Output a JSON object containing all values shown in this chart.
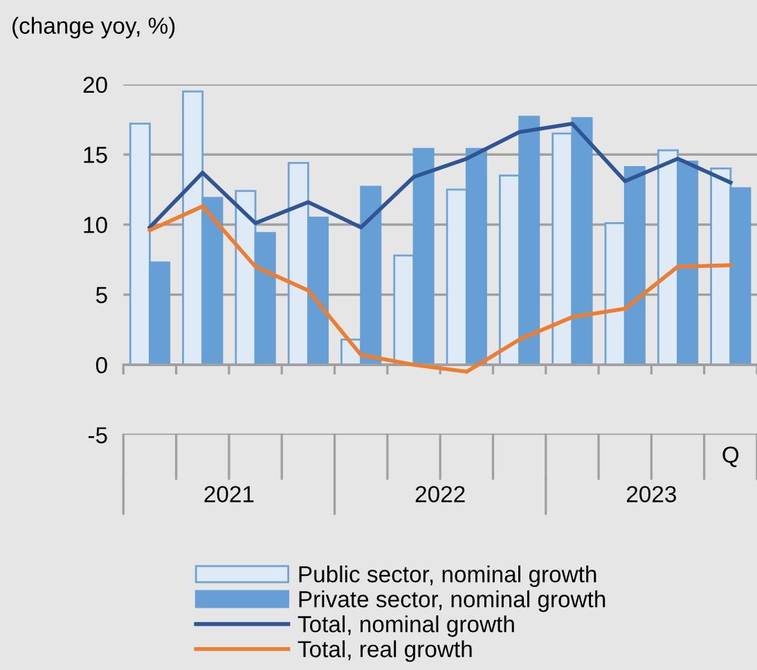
{
  "chart_data": {
    "type": "bar",
    "title": "(change yoy, %)",
    "categories": [
      null,
      null,
      null,
      null,
      null,
      null,
      null,
      null,
      null,
      null,
      null,
      "Q"
    ],
    "annotations": [
      "2021",
      "2022",
      "2023"
    ],
    "series": [
      {
        "name": "Public sector, nominal growth",
        "color": "#deeaf6",
        "values": [
          17.2,
          19.5,
          12.4,
          14.4,
          1.8,
          7.8,
          12.5,
          13.5,
          16.5,
          10.1,
          15.3,
          14.0
        ]
      },
      {
        "name": "Private sector, nominal growth",
        "color": "#659fd5",
        "values": [
          7.3,
          11.9,
          9.4,
          10.5,
          12.7,
          15.4,
          15.4,
          17.7,
          17.6,
          14.1,
          14.5,
          12.6
        ]
      },
      {
        "name": "Total, nominal growth",
        "type": "line",
        "color": "#2f5597",
        "values": [
          9.8,
          13.7,
          10.1,
          11.6,
          9.8,
          13.4,
          14.7,
          16.6,
          17.2,
          13.1,
          14.7,
          13.0
        ]
      },
      {
        "name": "Total, real growth",
        "type": "line",
        "color": "#ed7d31",
        "values": [
          9.6,
          11.3,
          7.0,
          5.3,
          0.7,
          0.0,
          -0.5,
          1.8,
          3.4,
          4.0,
          7.0,
          7.1
        ]
      }
    ],
    "ylim": [
      -5,
      20
    ],
    "yticks": [
      -5,
      0,
      5,
      10,
      15,
      20
    ],
    "grid": "y",
    "legend": "bottom",
    "marker": "none",
    "line_style": "solid"
  }
}
